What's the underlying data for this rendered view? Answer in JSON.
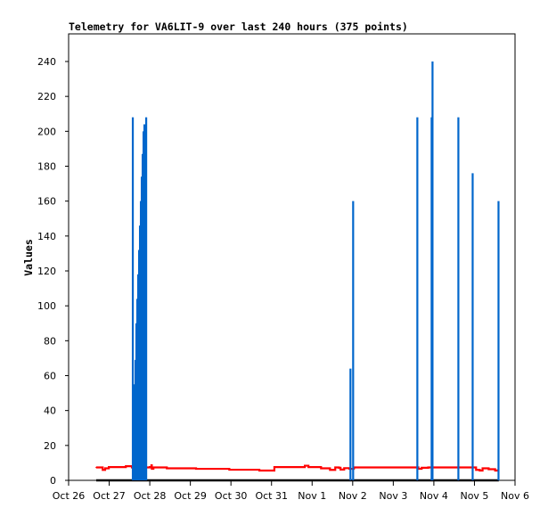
{
  "chart_data": {
    "type": "line",
    "title": "Telemetry for VA6LIT-9 over last 240 hours (375 points)",
    "xlabel": "",
    "ylabel": "Values",
    "x_units": "days since Oct 26 00:00",
    "xlim": [
      0,
      11
    ],
    "ylim": [
      0,
      255
    ],
    "x_ticks": [
      {
        "value": 0,
        "label": "Oct 26"
      },
      {
        "value": 1,
        "label": "Oct 27"
      },
      {
        "value": 2,
        "label": "Oct 28"
      },
      {
        "value": 3,
        "label": "Oct 29"
      },
      {
        "value": 4,
        "label": "Oct 30"
      },
      {
        "value": 5,
        "label": "Oct 31"
      },
      {
        "value": 6,
        "label": "Nov 1"
      },
      {
        "value": 7,
        "label": "Nov 2"
      },
      {
        "value": 8,
        "label": "Nov 3"
      },
      {
        "value": 9,
        "label": "Nov 4"
      },
      {
        "value": 10,
        "label": "Nov 5"
      },
      {
        "value": 11,
        "label": "Nov 6"
      }
    ],
    "y_ticks": [
      0,
      20,
      40,
      60,
      80,
      100,
      120,
      140,
      160,
      180,
      200,
      220,
      240
    ],
    "grid": false,
    "series": [
      {
        "name": "baseline",
        "color": "#000000",
        "style": "line",
        "points": [
          [
            0.68,
            0
          ],
          [
            10.6,
            0
          ]
        ]
      },
      {
        "name": "red",
        "color": "#ff0000",
        "style": "step",
        "points": [
          [
            0.68,
            7.4
          ],
          [
            0.84,
            6.0
          ],
          [
            0.9,
            6.9
          ],
          [
            0.99,
            7.6
          ],
          [
            1.41,
            8.1
          ],
          [
            1.56,
            7.4
          ],
          [
            2.0,
            7.6
          ],
          [
            2.04,
            8.6
          ],
          [
            2.05,
            6.6
          ],
          [
            2.09,
            7.4
          ],
          [
            2.42,
            6.9
          ],
          [
            3.14,
            6.6
          ],
          [
            3.96,
            6.1
          ],
          [
            4.7,
            5.6
          ],
          [
            5.05,
            5.6
          ],
          [
            5.07,
            7.6
          ],
          [
            5.82,
            8.4
          ],
          [
            5.91,
            7.6
          ],
          [
            6.22,
            6.9
          ],
          [
            6.44,
            6.0
          ],
          [
            6.57,
            7.4
          ],
          [
            6.66,
            7.2
          ],
          [
            6.7,
            6.2
          ],
          [
            6.79,
            7.0
          ],
          [
            6.92,
            6.6
          ],
          [
            7.03,
            7.4
          ],
          [
            8.6,
            7.4
          ],
          [
            8.62,
            6.6
          ],
          [
            8.7,
            7.2
          ],
          [
            8.86,
            7.4
          ],
          [
            10.0,
            7.4
          ],
          [
            10.04,
            6.0
          ],
          [
            10.13,
            5.6
          ],
          [
            10.2,
            6.9
          ],
          [
            10.35,
            6.4
          ],
          [
            10.51,
            5.6
          ],
          [
            10.57,
            6.0
          ]
        ]
      },
      {
        "name": "blue",
        "color": "#0066cc",
        "style": "spikes",
        "points": [
          [
            1.582,
            208
          ],
          [
            1.604,
            28
          ],
          [
            1.626,
            55
          ],
          [
            1.648,
            69
          ],
          [
            1.67,
            90
          ],
          [
            1.692,
            104
          ],
          [
            1.714,
            118
          ],
          [
            1.736,
            132
          ],
          [
            1.758,
            146
          ],
          [
            1.78,
            160
          ],
          [
            1.802,
            174
          ],
          [
            1.824,
            187
          ],
          [
            1.846,
            200
          ],
          [
            1.868,
            204
          ],
          [
            1.912,
            208
          ],
          [
            6.945,
            64
          ],
          [
            7.011,
            160
          ],
          [
            8.593,
            208
          ],
          [
            8.945,
            208
          ],
          [
            8.967,
            240
          ],
          [
            9.604,
            208
          ],
          [
            9.956,
            176
          ],
          [
            10.593,
            160
          ]
        ]
      }
    ]
  }
}
